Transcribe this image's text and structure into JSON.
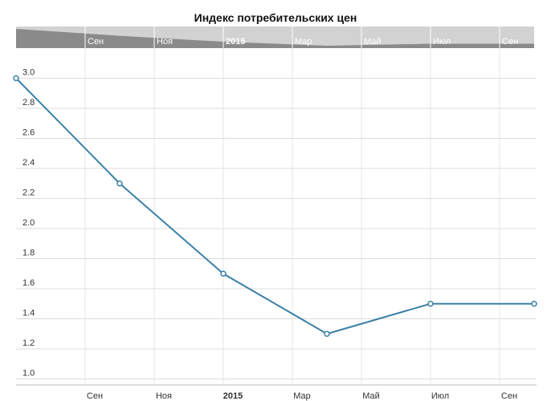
{
  "chart_data": {
    "type": "line",
    "title": "Индекс потребительских цен",
    "x": [
      "2014-07",
      "2014-10",
      "2015-01",
      "2015-04",
      "2015-07",
      "2015-10"
    ],
    "series": [
      {
        "name": "Индекс потребительских цен",
        "color": "#3a80a6",
        "values": [
          3.0,
          2.3,
          1.7,
          1.3,
          1.5,
          1.5
        ]
      }
    ],
    "xlim": [
      "2014-07",
      "2015-10"
    ],
    "xticks": [
      {
        "value": "2014-09",
        "label": "Сен"
      },
      {
        "value": "2014-11",
        "label": "Ноя"
      },
      {
        "value": "2015-01",
        "label": "2015"
      },
      {
        "value": "2015-03",
        "label": "Мар"
      },
      {
        "value": "2015-05",
        "label": "Май"
      },
      {
        "value": "2015-07",
        "label": "Июл"
      },
      {
        "value": "2015-09",
        "label": "Сен"
      }
    ],
    "ylim": [
      0.96,
      3.2
    ],
    "yticks": [
      {
        "value": 1,
        "label": "1.0"
      },
      {
        "value": 1.2,
        "label": "1.2"
      },
      {
        "value": 1.4,
        "label": "1.4"
      },
      {
        "value": 1.6,
        "label": "1.6"
      },
      {
        "value": 1.8,
        "label": "1.8"
      },
      {
        "value": 2,
        "label": "2.0"
      },
      {
        "value": 2.2,
        "label": "2.2"
      },
      {
        "value": 2.4,
        "label": "2.4"
      },
      {
        "value": 2.6,
        "label": "2.6"
      },
      {
        "value": 2.8,
        "label": "2.8"
      },
      {
        "value": 3,
        "label": "3.0"
      }
    ],
    "grid": true
  }
}
